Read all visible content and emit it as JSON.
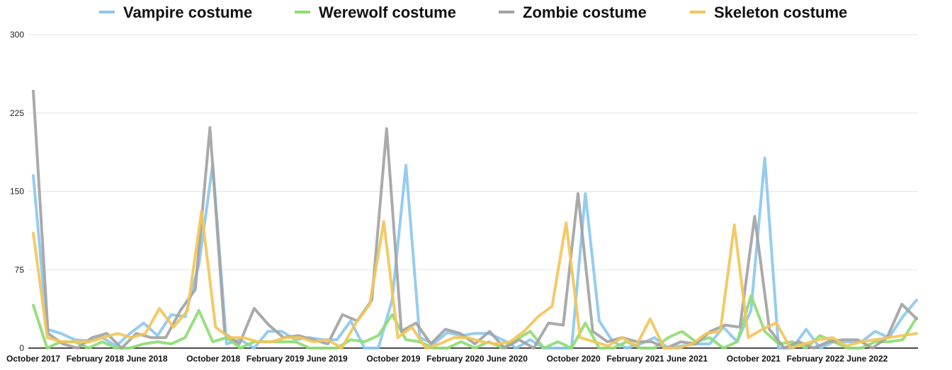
{
  "chart_data": {
    "type": "line",
    "legend_position": "top",
    "grid": true,
    "ylim": [
      0,
      300
    ],
    "yticks": [
      "0",
      "75",
      "150",
      "225",
      "300"
    ],
    "xlabels": [
      "October 2017",
      "February 2018",
      "June 2018",
      "October 2018",
      "February 2019",
      "June 2019",
      "October 2019",
      "February 2020",
      "June 2020",
      "October 2020",
      "February 2021",
      "June 2021",
      "October 2021",
      "February 2022",
      "June 2022"
    ],
    "series": [
      {
        "name": "Vampire costume",
        "color": "#8cc8f0",
        "values": [
          165,
          18,
          14,
          8,
          7,
          10,
          2,
          14,
          24,
          12,
          32,
          30,
          80,
          176,
          4,
          8,
          0,
          16,
          16,
          8,
          10,
          8,
          8,
          26,
          0,
          0,
          46,
          175,
          10,
          4,
          15,
          12,
          14,
          14,
          8,
          0,
          8,
          0,
          0,
          0,
          148,
          26,
          6,
          0,
          4,
          10,
          0,
          2,
          4,
          4,
          20,
          6,
          36,
          182,
          0,
          0,
          18,
          0,
          6,
          6,
          6,
          16,
          10,
          30,
          46
        ]
      },
      {
        "name": "Werewolf costume",
        "color": "#8edc74",
        "values": [
          41,
          0,
          6,
          6,
          0,
          6,
          0,
          0,
          4,
          6,
          4,
          10,
          36,
          6,
          10,
          0,
          6,
          6,
          6,
          6,
          0,
          0,
          0,
          8,
          6,
          12,
          32,
          8,
          6,
          0,
          0,
          6,
          0,
          6,
          0,
          8,
          16,
          0,
          6,
          0,
          24,
          0,
          0,
          6,
          0,
          0,
          10,
          16,
          6,
          10,
          0,
          6,
          50,
          16,
          4,
          6,
          0,
          12,
          6,
          0,
          0,
          6,
          6,
          8,
          29
        ]
      },
      {
        "name": "Zombie costume",
        "color": "#a3a3a3",
        "values": [
          246,
          14,
          4,
          0,
          10,
          14,
          0,
          14,
          10,
          10,
          36,
          56,
          211,
          14,
          4,
          38,
          22,
          10,
          12,
          8,
          4,
          32,
          26,
          46,
          210,
          16,
          24,
          4,
          18,
          14,
          4,
          16,
          0,
          8,
          0,
          24,
          22,
          148,
          16,
          6,
          10,
          6,
          6,
          0,
          6,
          4,
          16,
          22,
          20,
          126,
          18,
          0,
          6,
          0,
          6,
          8,
          8,
          0,
          10,
          42,
          28
        ]
      },
      {
        "name": "Skeleton costume",
        "color": "#f2c55a",
        "values": [
          110,
          10,
          6,
          6,
          6,
          10,
          14,
          10,
          14,
          38,
          20,
          36,
          131,
          20,
          10,
          10,
          6,
          6,
          10,
          10,
          6,
          8,
          0,
          24,
          42,
          121,
          10,
          20,
          0,
          4,
          10,
          10,
          6,
          4,
          6,
          16,
          30,
          40,
          120,
          10,
          6,
          2,
          10,
          2,
          28,
          0,
          0,
          4,
          14,
          16,
          118,
          10,
          18,
          24,
          0,
          4,
          8,
          10,
          2,
          6,
          8,
          10,
          12,
          14
        ]
      }
    ]
  }
}
